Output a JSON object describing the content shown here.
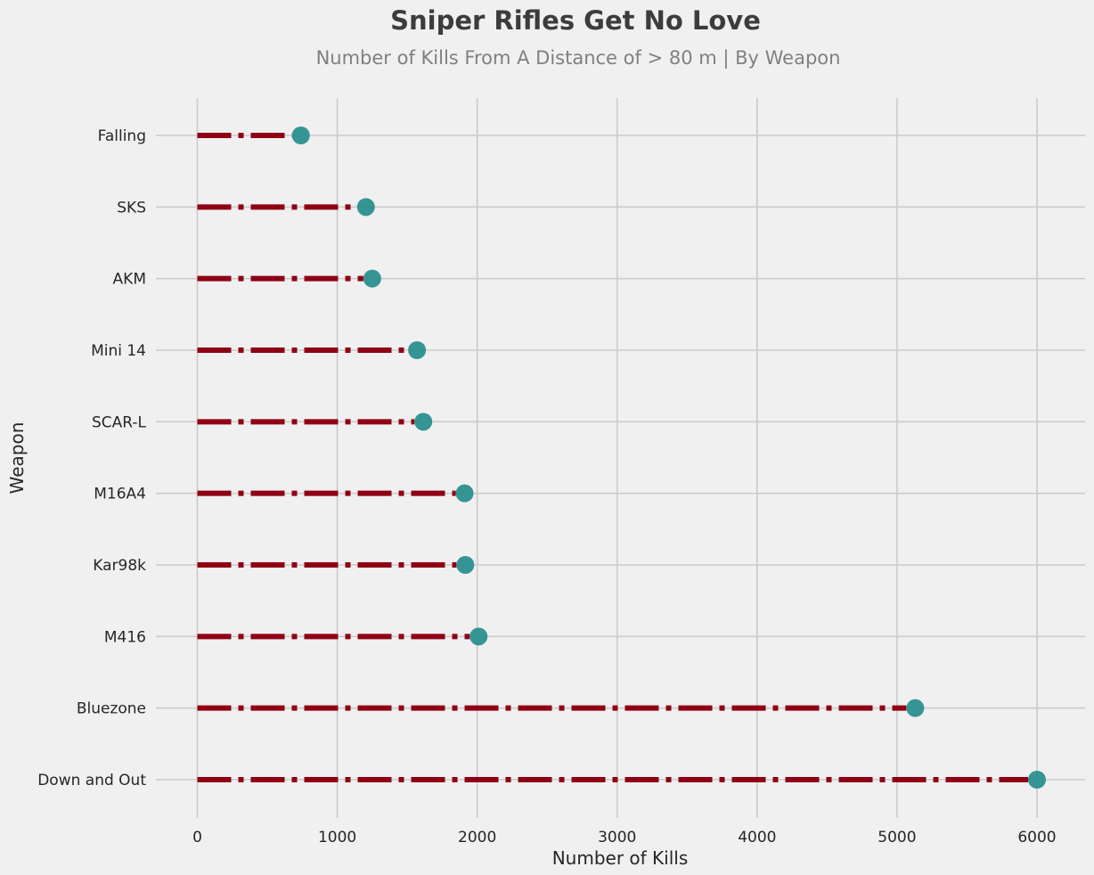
{
  "chart_data": {
    "type": "lollipop",
    "title": "Sniper Rifles Get No Love",
    "subtitle": "Number of Kills From A Distance of > 80 m | By Weapon",
    "xlabel": "Number of Kills",
    "ylabel": "Weapon",
    "xlim": [
      -300,
      6330
    ],
    "xticks": [
      0,
      1000,
      2000,
      3000,
      4000,
      5000,
      6000
    ],
    "xtick_labels": [
      "0",
      "1000",
      "2000",
      "3000",
      "4000",
      "5000",
      "6000"
    ],
    "categories": [
      "Falling",
      "SKS",
      "AKM",
      "Mini 14",
      "SCAR-L",
      "M16A4",
      "Kar98k",
      "M416",
      "Bluezone",
      "Down and Out"
    ],
    "values": [
      740,
      1205,
      1250,
      1570,
      1615,
      1910,
      1915,
      2010,
      5130,
      6000
    ],
    "grid": true,
    "colors": {
      "background": "#f0f0f0",
      "stem": "#8f0014",
      "marker": "#2a8f8f",
      "grid": "#cbcbcb"
    }
  }
}
